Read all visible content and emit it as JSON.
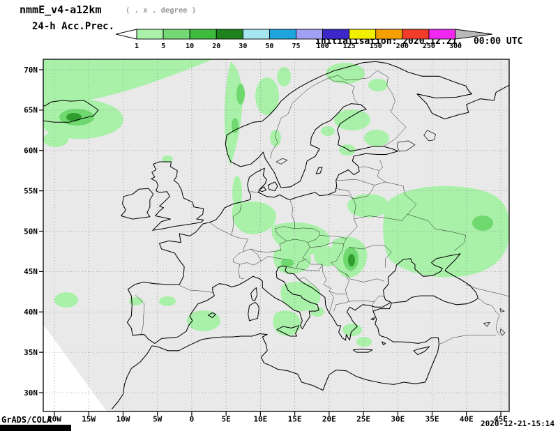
{
  "header": {
    "model": "nmmE_v4-a12km",
    "resolution_note": "( . x . degree )",
    "product": "24-h Acc.Prec.",
    "init_line": "initialisation: 2020.12.21.  00:00 UTC",
    "valid_line": "valid(+112h): 2020.DEC.25 16:00 UTC"
  },
  "legend": {
    "unit_values": [
      "1",
      "5",
      "10",
      "20",
      "30",
      "50",
      "75",
      "100",
      "125",
      "150",
      "200",
      "250",
      "300"
    ],
    "segment_colors": [
      "#a9f1a9",
      "#74d974",
      "#3dbb3d",
      "#1e821e",
      "#a5e6f0",
      "#1ea5dc",
      "#a0a0f5",
      "#3c28c8",
      "#f0f000",
      "#f5a000",
      "#f03c28",
      "#f028f0"
    ],
    "below_min_color": "#fcfffc",
    "above_max_color": "#b9b9b9"
  },
  "map": {
    "lat_labels": [
      "70N",
      "65N",
      "60N",
      "55N",
      "50N",
      "45N",
      "40N",
      "35N",
      "30N"
    ],
    "lon_labels": [
      "20W",
      "15W",
      "10W",
      "5W",
      "0",
      "5E",
      "10E",
      "15E",
      "20E",
      "25E",
      "30E",
      "35E",
      "40E",
      "45E"
    ],
    "colors": {
      "background": "#e9e9e9",
      "precip_light": "#a9f1a9",
      "precip_medium": "#6fd86f",
      "precip_dark": "#2f9e2f",
      "outside_domain": "#ffffff"
    }
  },
  "footer": {
    "credit": "GrADS/COLA",
    "timestamp": "2020-12-21-15:14"
  }
}
